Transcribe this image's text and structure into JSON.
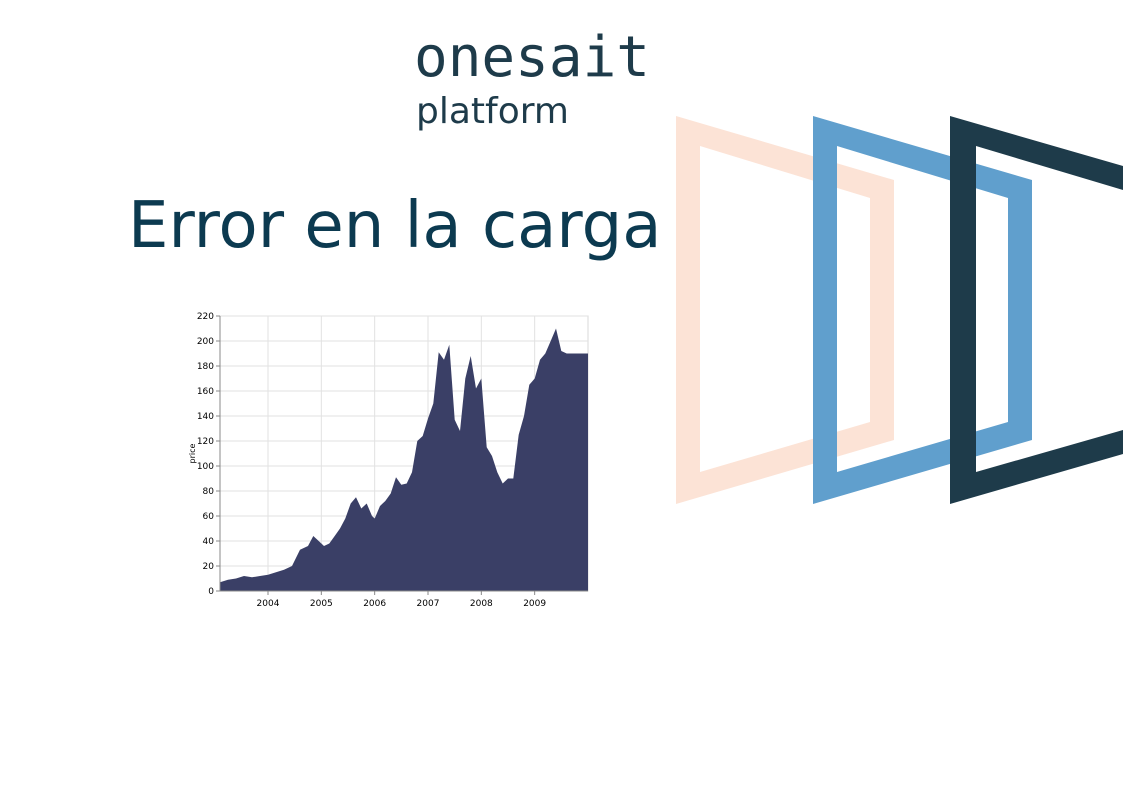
{
  "logo": {
    "word": "onesait",
    "sub": "platform"
  },
  "page": {
    "title": "Error en la carga"
  },
  "colors": {
    "title": "#0c3a50",
    "logo": "#1e3b4a",
    "area_fill": "#3a3f66",
    "deco_peach": "#fce3d6",
    "deco_blue": "#609fcd",
    "deco_navy": "#1e3b4a"
  },
  "chart_data": {
    "type": "area",
    "title": "",
    "xlabel": "",
    "ylabel": "price",
    "ylim": [
      0,
      220
    ],
    "xlim": [
      2003.1,
      2010.0
    ],
    "yticks": [
      0,
      20,
      40,
      60,
      80,
      100,
      120,
      140,
      160,
      180,
      200,
      220
    ],
    "xticks": [
      {
        "value": 2004,
        "label": "2004"
      },
      {
        "value": 2005,
        "label": "2005"
      },
      {
        "value": 2006,
        "label": "2006"
      },
      {
        "value": 2007,
        "label": "2007"
      },
      {
        "value": 2008,
        "label": "2008"
      },
      {
        "value": 2009,
        "label": "2009"
      }
    ],
    "grid": true,
    "x": [
      2003.1,
      2003.25,
      2003.4,
      2003.55,
      2003.7,
      2003.85,
      2004.0,
      2004.15,
      2004.3,
      2004.45,
      2004.6,
      2004.75,
      2004.85,
      2004.95,
      2005.05,
      2005.15,
      2005.25,
      2005.35,
      2005.45,
      2005.55,
      2005.65,
      2005.75,
      2005.85,
      2005.95,
      2006.0,
      2006.1,
      2006.2,
      2006.3,
      2006.4,
      2006.5,
      2006.6,
      2006.7,
      2006.8,
      2006.9,
      2007.0,
      2007.1,
      2007.2,
      2007.3,
      2007.4,
      2007.5,
      2007.6,
      2007.7,
      2007.8,
      2007.9,
      2008.0,
      2008.1,
      2008.2,
      2008.3,
      2008.4,
      2008.5,
      2008.6,
      2008.7,
      2008.8,
      2008.9,
      2009.0,
      2009.1,
      2009.2,
      2009.3,
      2009.4,
      2009.5,
      2009.6,
      2009.7,
      2009.8,
      2009.9,
      2010.0
    ],
    "y": [
      7,
      9,
      10,
      12,
      11,
      12,
      13,
      15,
      17,
      20,
      33,
      36,
      44,
      40,
      36,
      38,
      44,
      50,
      58,
      70,
      75,
      66,
      70,
      60,
      58,
      68,
      72,
      78,
      91,
      85,
      86,
      95,
      120,
      124,
      138,
      150,
      191,
      185,
      197,
      137,
      128,
      170,
      188,
      162,
      170,
      115,
      108,
      95,
      86,
      90,
      90,
      125,
      140,
      165,
      170,
      185,
      190,
      200,
      210,
      192,
      190,
      190,
      190,
      190,
      190
    ]
  }
}
